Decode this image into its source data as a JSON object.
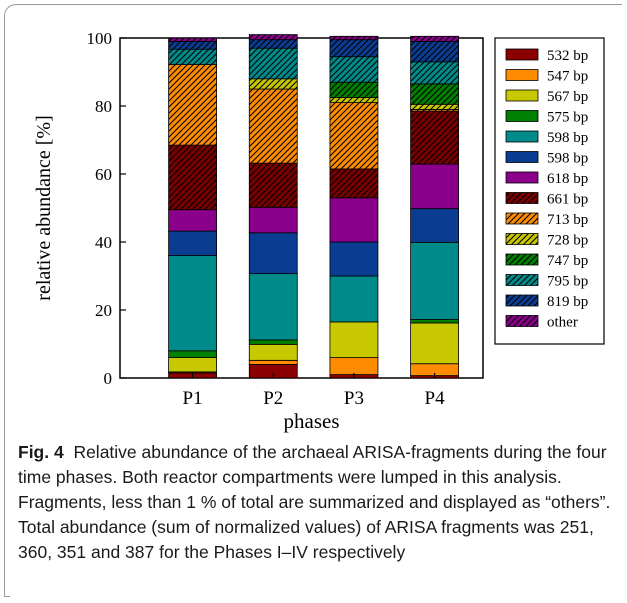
{
  "chart_data": {
    "type": "bar",
    "stacked": true,
    "categories": [
      "P1",
      "P2",
      "P3",
      "P4"
    ],
    "xlabel": "phases",
    "ylabel": "relative abundance [%]",
    "ylim": [
      0,
      100
    ],
    "yticks": [
      0,
      20,
      40,
      60,
      80,
      100
    ],
    "legend_position": "right",
    "series": [
      {
        "name": "532 bp",
        "color": "#8b0000",
        "pattern": "solid",
        "values": [
          1.5,
          4.0,
          1.0,
          0.7
        ]
      },
      {
        "name": "547 bp",
        "color": "#ff8c00",
        "pattern": "solid",
        "values": [
          0.3,
          1.2,
          5.0,
          3.5
        ]
      },
      {
        "name": "567 bp",
        "color": "#c8c800",
        "pattern": "solid",
        "values": [
          4.2,
          4.7,
          10.5,
          12.0
        ]
      },
      {
        "name": "575 bp",
        "color": "#008000",
        "pattern": "solid",
        "values": [
          2.0,
          1.3,
          0.0,
          1.0
        ]
      },
      {
        "name": "598 bp",
        "color": "#008b8b",
        "pattern": "solid",
        "values": [
          28.0,
          19.5,
          13.5,
          22.7
        ]
      },
      {
        "name": "598 bp",
        "color": "#0a3d91",
        "pattern": "solid",
        "values": [
          7.2,
          12.0,
          10.0,
          9.9
        ]
      },
      {
        "name": "618 bp",
        "color": "#8b008b",
        "pattern": "solid",
        "values": [
          6.3,
          7.5,
          13.0,
          13.1
        ]
      },
      {
        "name": "661 bp",
        "color": "#7a0000",
        "pattern": "hatch",
        "values": [
          19.0,
          13.0,
          8.5,
          15.6
        ]
      },
      {
        "name": "713 bp",
        "color": "#ff8c00",
        "pattern": "hatch",
        "values": [
          23.7,
          21.8,
          19.5,
          0.5
        ]
      },
      {
        "name": "728 bp",
        "color": "#c8c800",
        "pattern": "hatch",
        "values": [
          0.0,
          3.0,
          1.5,
          1.5
        ]
      },
      {
        "name": "747 bp",
        "color": "#008000",
        "pattern": "hatch",
        "values": [
          0.0,
          0.0,
          4.5,
          6.0
        ]
      },
      {
        "name": "795 bp",
        "color": "#008b8b",
        "pattern": "hatch",
        "values": [
          4.5,
          9.0,
          7.5,
          6.5
        ]
      },
      {
        "name": "819 bp",
        "color": "#0a3d91",
        "pattern": "hatch",
        "values": [
          2.3,
          2.5,
          5.0,
          6.0
        ]
      },
      {
        "name": "other",
        "color": "#8b008b",
        "pattern": "hatch",
        "values": [
          1.0,
          1.5,
          1.0,
          1.5
        ]
      }
    ]
  },
  "caption": {
    "label": "Fig. 4",
    "text": "Relative abundance of the archaeal ARISA-fragments during the four time phases. Both reactor compartments were lumped in this analysis. Fragments, less than 1 % of total are summarized and displayed as “others”. Total abundance (sum of normalized values) of ARISA fragments was 251, 360, 351 and 387 for the Phases I–IV respectively"
  }
}
